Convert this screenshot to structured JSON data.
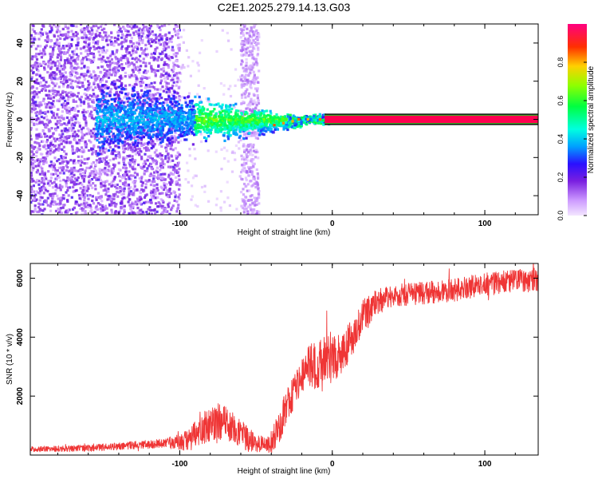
{
  "title": "C2E1.2025.279.14.13.G03",
  "colors": {
    "trace": "#ef3535",
    "axis": "#000000",
    "background": "#ffffff"
  },
  "chart_data": [
    {
      "type": "heatmap",
      "xlabel": "Height of straight line (km)",
      "ylabel": "Frequency (Hz)",
      "xlim": [
        -198,
        135
      ],
      "ylim": [
        -50,
        50
      ],
      "xticks": [
        -100,
        0,
        100
      ],
      "xtick_labels": [
        "-100",
        "0",
        "100"
      ],
      "yticks": [
        -40,
        -20,
        0,
        20,
        40
      ],
      "ytick_labels": [
        "-40",
        "-20",
        "0",
        "20",
        "40"
      ],
      "colorbar": {
        "label": "Normalized spectral amplitude",
        "range": [
          0,
          1
        ],
        "ticks": [
          0.0,
          0.2,
          0.4,
          0.6,
          0.8
        ],
        "tick_labels": [
          "0.0",
          "0.2",
          "0.4",
          "0.6",
          "0.8"
        ]
      },
      "features": {
        "carrier_line_freq_hz": 0,
        "carrier_line_band_hz": 3,
        "carrier_start_km": -5,
        "noise_region_km": [
          -198,
          -100
        ],
        "gap_region_km": [
          -100,
          -60
        ],
        "noise_strip_km": [
          -60,
          -48
        ]
      }
    },
    {
      "type": "line",
      "xlabel": "Height of straight line (km)",
      "ylabel": "SNR (10 * v/v)",
      "xlim": [
        -198,
        135
      ],
      "ylim": [
        0,
        6500
      ],
      "xticks": [
        -100,
        0,
        100
      ],
      "xtick_labels": [
        "-100",
        "0",
        "100"
      ],
      "yticks": [
        2000,
        4000,
        6000
      ],
      "ytick_labels": [
        "2000",
        "4000",
        "6000"
      ],
      "series": [
        {
          "name": "SNR",
          "trend_x": [
            -198,
            -160,
            -130,
            -110,
            -95,
            -85,
            -75,
            -65,
            -55,
            -45,
            -40,
            -35,
            -30,
            -25,
            -20,
            -15,
            -10,
            -5,
            0,
            5,
            10,
            15,
            20,
            25,
            30,
            35,
            40,
            50,
            60,
            70,
            80,
            90,
            100,
            110,
            120,
            135
          ],
          "trend_y": [
            200,
            230,
            330,
            400,
            480,
            900,
            1150,
            950,
            500,
            350,
            450,
            900,
            1700,
            2200,
            2600,
            3000,
            3050,
            3050,
            3300,
            3500,
            3700,
            4200,
            4700,
            5000,
            5200,
            5300,
            5400,
            5450,
            5500,
            5550,
            5600,
            5700,
            5800,
            5850,
            5900,
            5950
          ],
          "noise_x": [
            -198,
            -110,
            -90,
            -75,
            -60,
            -45,
            -35,
            -20,
            -5,
            10,
            20,
            40,
            135
          ],
          "noise_amp": [
            90,
            150,
            450,
            650,
            500,
            250,
            550,
            700,
            950,
            700,
            550,
            380,
            400
          ]
        }
      ]
    }
  ]
}
